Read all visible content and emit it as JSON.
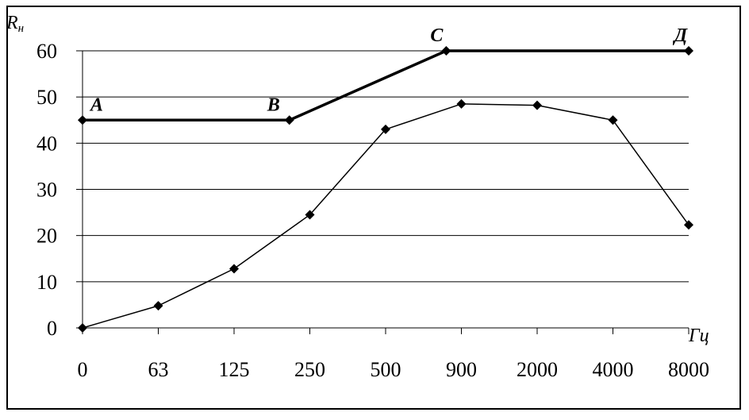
{
  "chart_data": {
    "type": "line",
    "x_categories": [
      "0",
      "63",
      "125",
      "250",
      "500",
      "900",
      "2000",
      "4000",
      "8000"
    ],
    "y_ticks": [
      0,
      10,
      20,
      30,
      40,
      50,
      60
    ],
    "ylim": [
      0,
      60
    ],
    "ylabel_main": "R",
    "ylabel_sub": "н",
    "xlabel": "Гц",
    "grid": "horizontal",
    "series": [
      {
        "points": [
          {
            "x": 0,
            "y": 0
          },
          {
            "x": 1,
            "y": 4.8
          },
          {
            "x": 2,
            "y": 12.8
          },
          {
            "x": 3,
            "y": 24.5
          },
          {
            "x": 4,
            "y": 43
          },
          {
            "x": 5,
            "y": 48.5
          },
          {
            "x": 6,
            "y": 48.2
          },
          {
            "x": 7,
            "y": 45
          },
          {
            "x": 8,
            "y": 22.3
          }
        ],
        "marker": "diamond",
        "style": "thin"
      },
      {
        "points": [
          {
            "x": 0,
            "y": 45,
            "label": "A"
          },
          {
            "x": 2.73,
            "y": 45,
            "label": "B"
          },
          {
            "x": 4.8,
            "y": 60,
            "label": "C"
          },
          {
            "x": 8,
            "y": 60,
            "label": "Д"
          }
        ],
        "marker": "diamond",
        "style": "thick"
      }
    ]
  }
}
